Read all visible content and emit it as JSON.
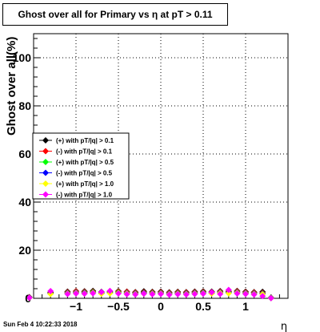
{
  "chart_data": {
    "type": "scatter",
    "title": "Ghost over all for Primary vs  η at pT > 0.11",
    "xlabel": "η",
    "ylabel": "Ghost over all(%)",
    "xlim": [
      -1.5,
      1.5
    ],
    "ylim": [
      0,
      110
    ],
    "x_ticks": [
      -1,
      -0.5,
      0,
      0.5,
      1
    ],
    "x_tick_labels": [
      "−1",
      "−0.5",
      "0",
      "0.5",
      "1"
    ],
    "y_ticks": [
      0,
      20,
      40,
      60,
      80,
      100
    ],
    "y_tick_labels": [
      "0",
      "20",
      "40",
      "60",
      "80",
      "100"
    ],
    "grid": true,
    "legend_position": "left",
    "x": [
      -1.55,
      -1.3,
      -1.1,
      -1.0,
      -0.9,
      -0.8,
      -0.7,
      -0.6,
      -0.5,
      -0.4,
      -0.3,
      -0.2,
      -0.1,
      0.0,
      0.1,
      0.2,
      0.3,
      0.4,
      0.5,
      0.6,
      0.7,
      0.8,
      0.9,
      1.0,
      1.1,
      1.2,
      1.3
    ],
    "series": [
      {
        "name": "(+) with pT/|q| > 0.1",
        "color": "#000000",
        "values": [
          0.5,
          2.5,
          2.8,
          3.0,
          2.9,
          3.1,
          2.7,
          2.9,
          3.0,
          2.8,
          2.6,
          2.9,
          2.7,
          2.8,
          2.5,
          2.7,
          2.6,
          2.8,
          2.9,
          2.8,
          3.0,
          2.9,
          3.1,
          2.8,
          2.6,
          2.7,
          0.3
        ]
      },
      {
        "name": "(-) with pT/|q| > 0.1",
        "color": "#ff0000",
        "values": [
          0.4,
          2.2,
          2.6,
          2.9,
          2.7,
          2.8,
          2.5,
          2.6,
          2.8,
          2.7,
          2.4,
          2.6,
          2.5,
          2.6,
          2.3,
          2.5,
          2.4,
          2.6,
          2.7,
          2.6,
          2.8,
          2.7,
          2.9,
          2.6,
          2.4,
          2.3,
          0.2
        ]
      },
      {
        "name": "(+) with pT/|q| > 0.5",
        "color": "#00ff00",
        "values": [
          0.3,
          2.0,
          2.3,
          2.5,
          2.4,
          2.6,
          2.2,
          2.4,
          2.5,
          2.3,
          2.1,
          2.3,
          2.2,
          2.3,
          2.0,
          2.2,
          2.1,
          2.3,
          2.4,
          2.3,
          2.5,
          2.4,
          2.6,
          2.3,
          2.1,
          2.0,
          0.2
        ]
      },
      {
        "name": "(-) with pT/|q| > 0.5",
        "color": "#0000ff",
        "values": [
          0.3,
          1.9,
          2.2,
          2.4,
          2.3,
          2.4,
          2.1,
          2.2,
          2.3,
          2.2,
          2.0,
          2.2,
          2.1,
          2.2,
          1.9,
          2.1,
          2.0,
          2.2,
          2.3,
          2.2,
          2.4,
          2.3,
          2.5,
          2.2,
          2.0,
          1.9,
          0.1
        ]
      },
      {
        "name": "(+) with pT/|q| > 1.0",
        "color": "#ffff00",
        "values": [
          0.2,
          1.8,
          2.0,
          2.2,
          2.1,
          2.3,
          1.9,
          2.1,
          2.2,
          2.0,
          1.8,
          2.0,
          1.9,
          2.0,
          1.7,
          1.9,
          1.8,
          2.0,
          2.1,
          2.0,
          2.2,
          2.1,
          2.3,
          2.0,
          1.8,
          1.7,
          0.1
        ]
      },
      {
        "name": "(-) with pT/|q| > 1.0",
        "color": "#ff00ff",
        "values": [
          0.2,
          3.0,
          1.8,
          2.0,
          1.9,
          2.1,
          2.6,
          3.1,
          2.0,
          1.7,
          1.6,
          1.9,
          1.7,
          1.8,
          1.5,
          1.7,
          1.6,
          1.8,
          1.9,
          2.5,
          1.8,
          3.5,
          2.0,
          1.8,
          1.6,
          0.9,
          0.1
        ]
      }
    ]
  },
  "footer": {
    "date": "Sun Feb  4 10:22:33 2018"
  }
}
